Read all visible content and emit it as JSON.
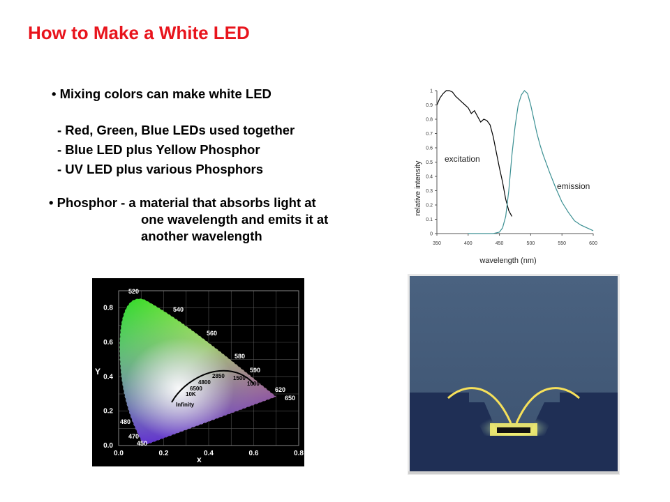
{
  "title": "How to Make a White LED",
  "bullets": {
    "b1": "• Mixing colors can make white LED",
    "s1": "- Red, Green, Blue LEDs used together",
    "s2": "- Blue LED plus Yellow Phosphor",
    "s3": "- UV LED plus various Phosphors",
    "b2": "• Phosphor - a material that absorbs light at",
    "b2_l2": "one wavelength and emits it at",
    "b2_l3": "another wavelength"
  },
  "chart_data": {
    "type": "line",
    "xlabel": "wavelength (nm)",
    "ylabel": "relative intensity",
    "xlim": [
      350,
      600
    ],
    "ylim": [
      0,
      1
    ],
    "xticks": [
      "350",
      "400",
      "450",
      "500",
      "550",
      "600"
    ],
    "yticks": [
      "0",
      "0.1",
      "0.2",
      "0.3",
      "0.4",
      "0.5",
      "0.6",
      "0.7",
      "0.8",
      "0.9",
      "1"
    ],
    "annotations": [
      "excitation",
      "emission"
    ],
    "series": [
      {
        "name": "excitation",
        "color": "#000000",
        "x": [
          350,
          355,
          360,
          365,
          370,
          375,
          380,
          385,
          390,
          395,
          400,
          405,
          410,
          415,
          420,
          425,
          430,
          435,
          440,
          445,
          450,
          455,
          460,
          465,
          470
        ],
        "y": [
          0.9,
          0.95,
          0.98,
          1.0,
          1.0,
          0.99,
          0.96,
          0.94,
          0.92,
          0.9,
          0.88,
          0.84,
          0.86,
          0.82,
          0.78,
          0.8,
          0.79,
          0.76,
          0.68,
          0.57,
          0.46,
          0.36,
          0.24,
          0.16,
          0.12
        ]
      },
      {
        "name": "emission",
        "color": "#3a8f92",
        "x": [
          400,
          420,
          440,
          450,
          455,
          460,
          465,
          470,
          475,
          480,
          485,
          490,
          495,
          500,
          505,
          510,
          515,
          520,
          530,
          540,
          550,
          560,
          570,
          580,
          590,
          595,
          600
        ],
        "y": [
          0.0,
          0.0,
          0.0,
          0.01,
          0.04,
          0.12,
          0.3,
          0.55,
          0.75,
          0.9,
          0.97,
          1.0,
          0.98,
          0.9,
          0.8,
          0.7,
          0.62,
          0.55,
          0.43,
          0.32,
          0.22,
          0.15,
          0.09,
          0.06,
          0.04,
          0.03,
          0.02
        ]
      }
    ]
  },
  "cie": {
    "axis_x_label": "x",
    "axis_y_label": "Y",
    "x_ticks": [
      "0.0",
      "0.2",
      "0.4",
      "0.6",
      "0.8"
    ],
    "y_ticks": [
      "0.0",
      "0.2",
      "0.4",
      "0.6",
      "0.8"
    ],
    "wavelengths": [
      "520",
      "540",
      "560",
      "580",
      "590",
      "620",
      "650",
      "480",
      "470",
      "450"
    ],
    "temps": [
      "2850",
      "1500",
      "1000",
      "4800",
      "6500",
      "10K",
      "Infinity"
    ]
  },
  "icons": {
    "cie": "cie-chromaticity-diagram",
    "photo": "white-led-photo"
  }
}
